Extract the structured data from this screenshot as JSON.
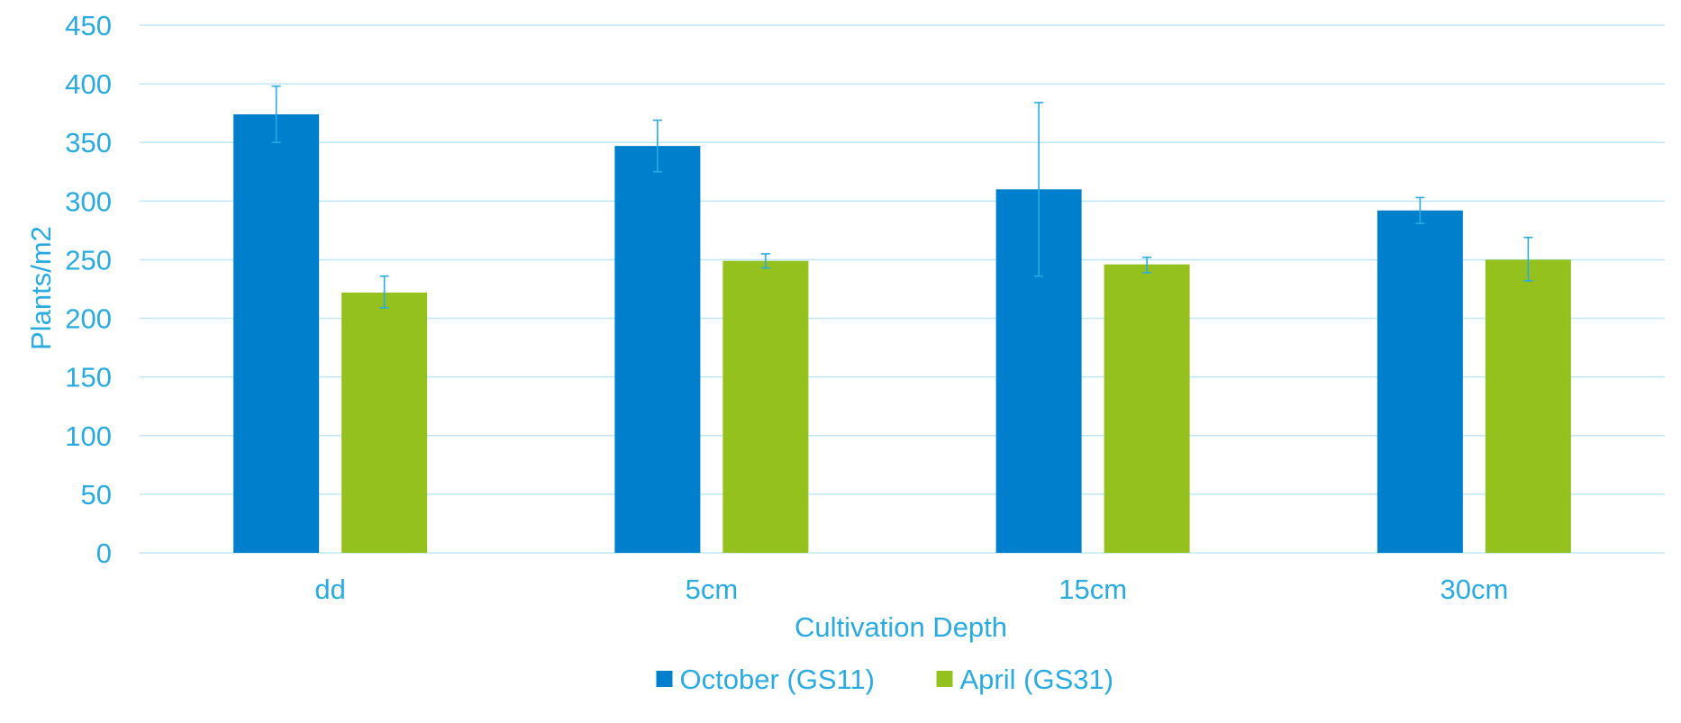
{
  "chart_data": {
    "type": "bar",
    "title": "",
    "xlabel": "Cultivation Depth",
    "ylabel": "Plants/m2",
    "ylim": [
      0,
      450
    ],
    "yticks": [
      0,
      50,
      100,
      150,
      200,
      250,
      300,
      350,
      400,
      450
    ],
    "grid": true,
    "legend_position": "bottom",
    "categories": [
      "dd",
      "5cm",
      "15cm",
      "30cm"
    ],
    "series": [
      {
        "name": "October (GS11)",
        "color": "#0080cc",
        "values": [
          374,
          347,
          310,
          292
        ],
        "error_low": [
          350,
          325,
          236,
          281
        ],
        "error_high": [
          398,
          369,
          384,
          303
        ]
      },
      {
        "name": "April (GS31)",
        "color": "#95c11f",
        "values": [
          222,
          249,
          246,
          250
        ],
        "error_low": [
          209,
          243,
          239,
          232
        ],
        "error_high": [
          236,
          255,
          252,
          269
        ]
      }
    ],
    "error_bar_color": "#29abe2"
  }
}
